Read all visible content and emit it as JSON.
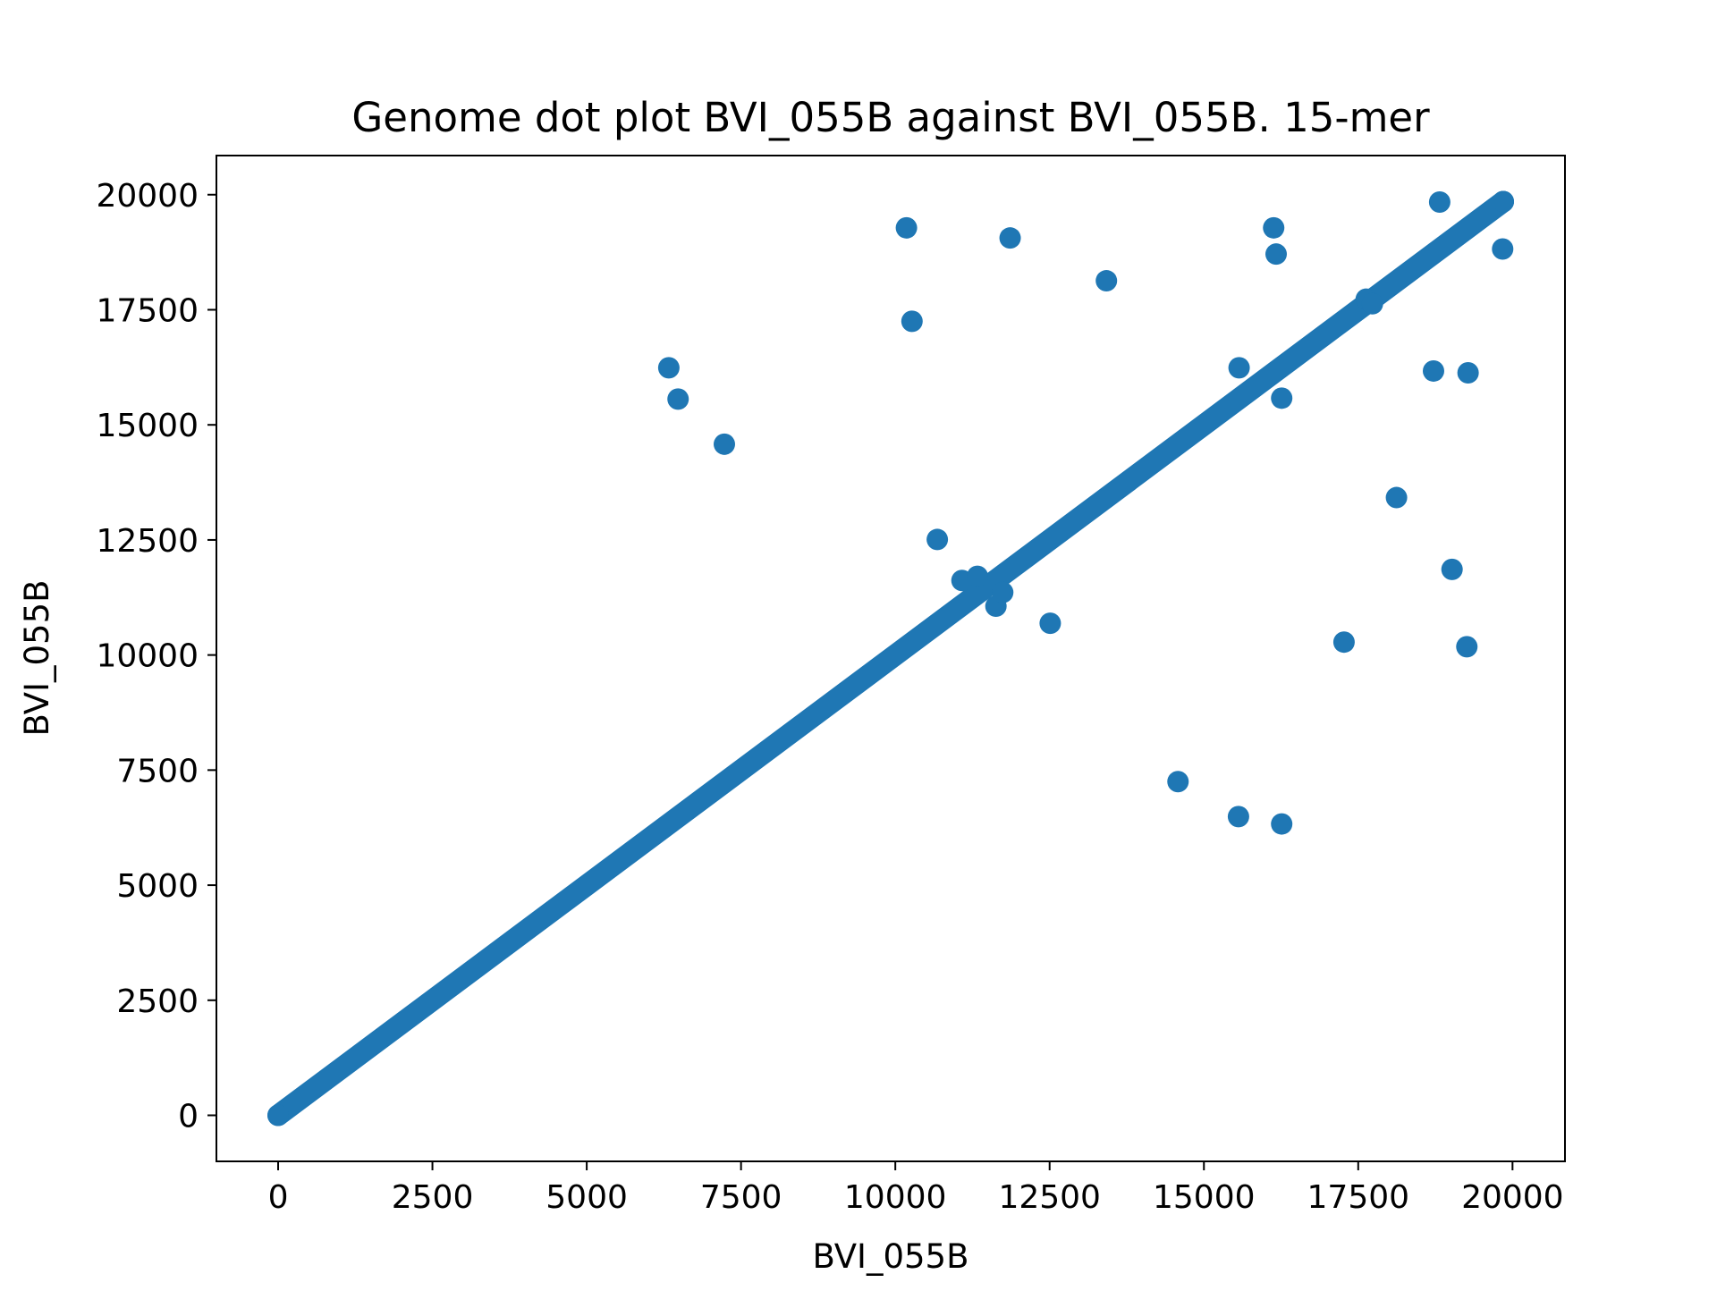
{
  "chart_data": {
    "type": "scatter",
    "title": "Genome dot plot BVI_055B against BVI_055B. 15-mer",
    "xlabel": "BVI_055B",
    "ylabel": "BVI_055B",
    "xlim": [
      -1000,
      20850
    ],
    "ylim": [
      -1000,
      20850
    ],
    "x_ticks": [
      0,
      2500,
      5000,
      7500,
      10000,
      12500,
      15000,
      17500,
      20000
    ],
    "y_ticks": [
      0,
      2500,
      5000,
      7500,
      10000,
      12500,
      15000,
      17500,
      20000
    ],
    "x_tick_labels": [
      "0",
      "2500",
      "5000",
      "7500",
      "10000",
      "12500",
      "15000",
      "17500",
      "20000"
    ],
    "y_tick_labels": [
      "0",
      "2500",
      "5000",
      "7500",
      "10000",
      "12500",
      "15000",
      "17500",
      "20000"
    ],
    "grid": false,
    "legend": null,
    "color": "#1f77b4",
    "series": [
      {
        "diagonal_range": [
          0,
          19850
        ],
        "points": [
          [
            6330,
            16240
          ],
          [
            6480,
            15560
          ],
          [
            7230,
            14580
          ],
          [
            10180,
            19280
          ],
          [
            10270,
            17250
          ],
          [
            10680,
            12510
          ],
          [
            11080,
            11620
          ],
          [
            11330,
            11710
          ],
          [
            11630,
            11060
          ],
          [
            11740,
            11360
          ],
          [
            11860,
            19060
          ],
          [
            12510,
            10690
          ],
          [
            13420,
            18130
          ],
          [
            14580,
            7250
          ],
          [
            15570,
            16240
          ],
          [
            15560,
            6490
          ],
          [
            16130,
            19280
          ],
          [
            16170,
            18710
          ],
          [
            16260,
            15580
          ],
          [
            16260,
            6330
          ],
          [
            17270,
            10280
          ],
          [
            17630,
            17730
          ],
          [
            17730,
            17630
          ],
          [
            18120,
            13420
          ],
          [
            18720,
            16170
          ],
          [
            18820,
            19840
          ],
          [
            19020,
            11860
          ],
          [
            19260,
            10180
          ],
          [
            19280,
            16130
          ],
          [
            19840,
            18820
          ],
          [
            19850,
            19850
          ]
        ]
      }
    ]
  }
}
